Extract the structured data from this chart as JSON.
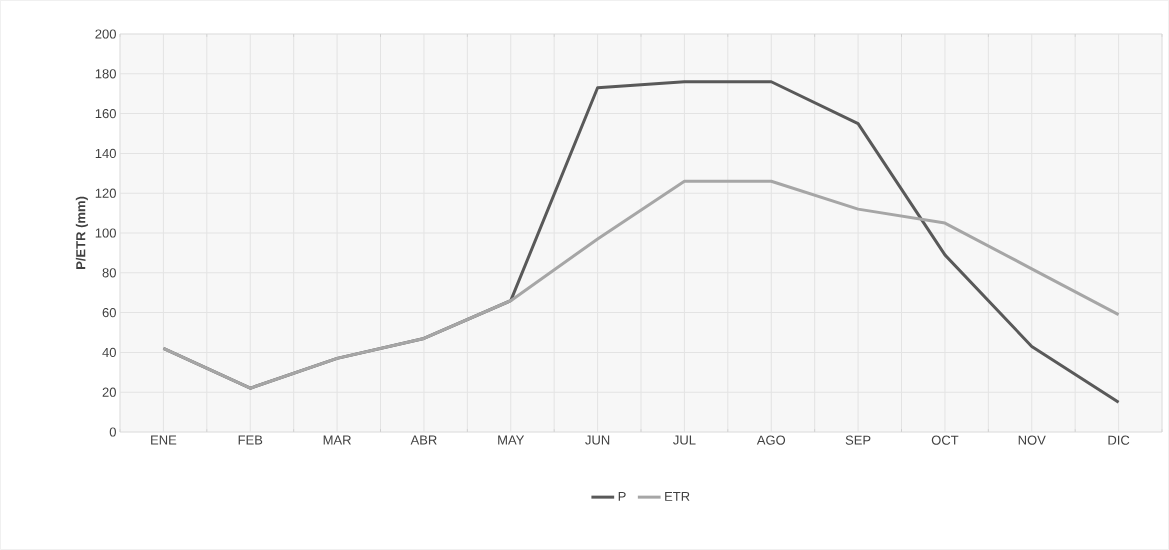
{
  "chart_data": {
    "type": "line",
    "ylabel": "P/ETR (mm)",
    "categories": [
      "ENE",
      "FEB",
      "MAR",
      "ABR",
      "MAY",
      "JUN",
      "JUL",
      "AGO",
      "SEP",
      "OCT",
      "NOV",
      "DIC"
    ],
    "series": [
      {
        "name": "P",
        "color": "#595959",
        "values": [
          42,
          22,
          37,
          47,
          66,
          173,
          176,
          176,
          155,
          89,
          43,
          15
        ]
      },
      {
        "name": "ETR",
        "color": "#a6a6a6",
        "values": [
          42,
          22,
          37,
          47,
          66,
          97,
          126,
          126,
          112,
          105,
          82,
          59
        ]
      }
    ],
    "ylim": [
      0,
      200
    ],
    "yticks": [
      0,
      20,
      40,
      60,
      80,
      100,
      120,
      140,
      160,
      180,
      200
    ],
    "grid": true,
    "legend": "bottom",
    "marker": "none",
    "line_style": "solid"
  }
}
